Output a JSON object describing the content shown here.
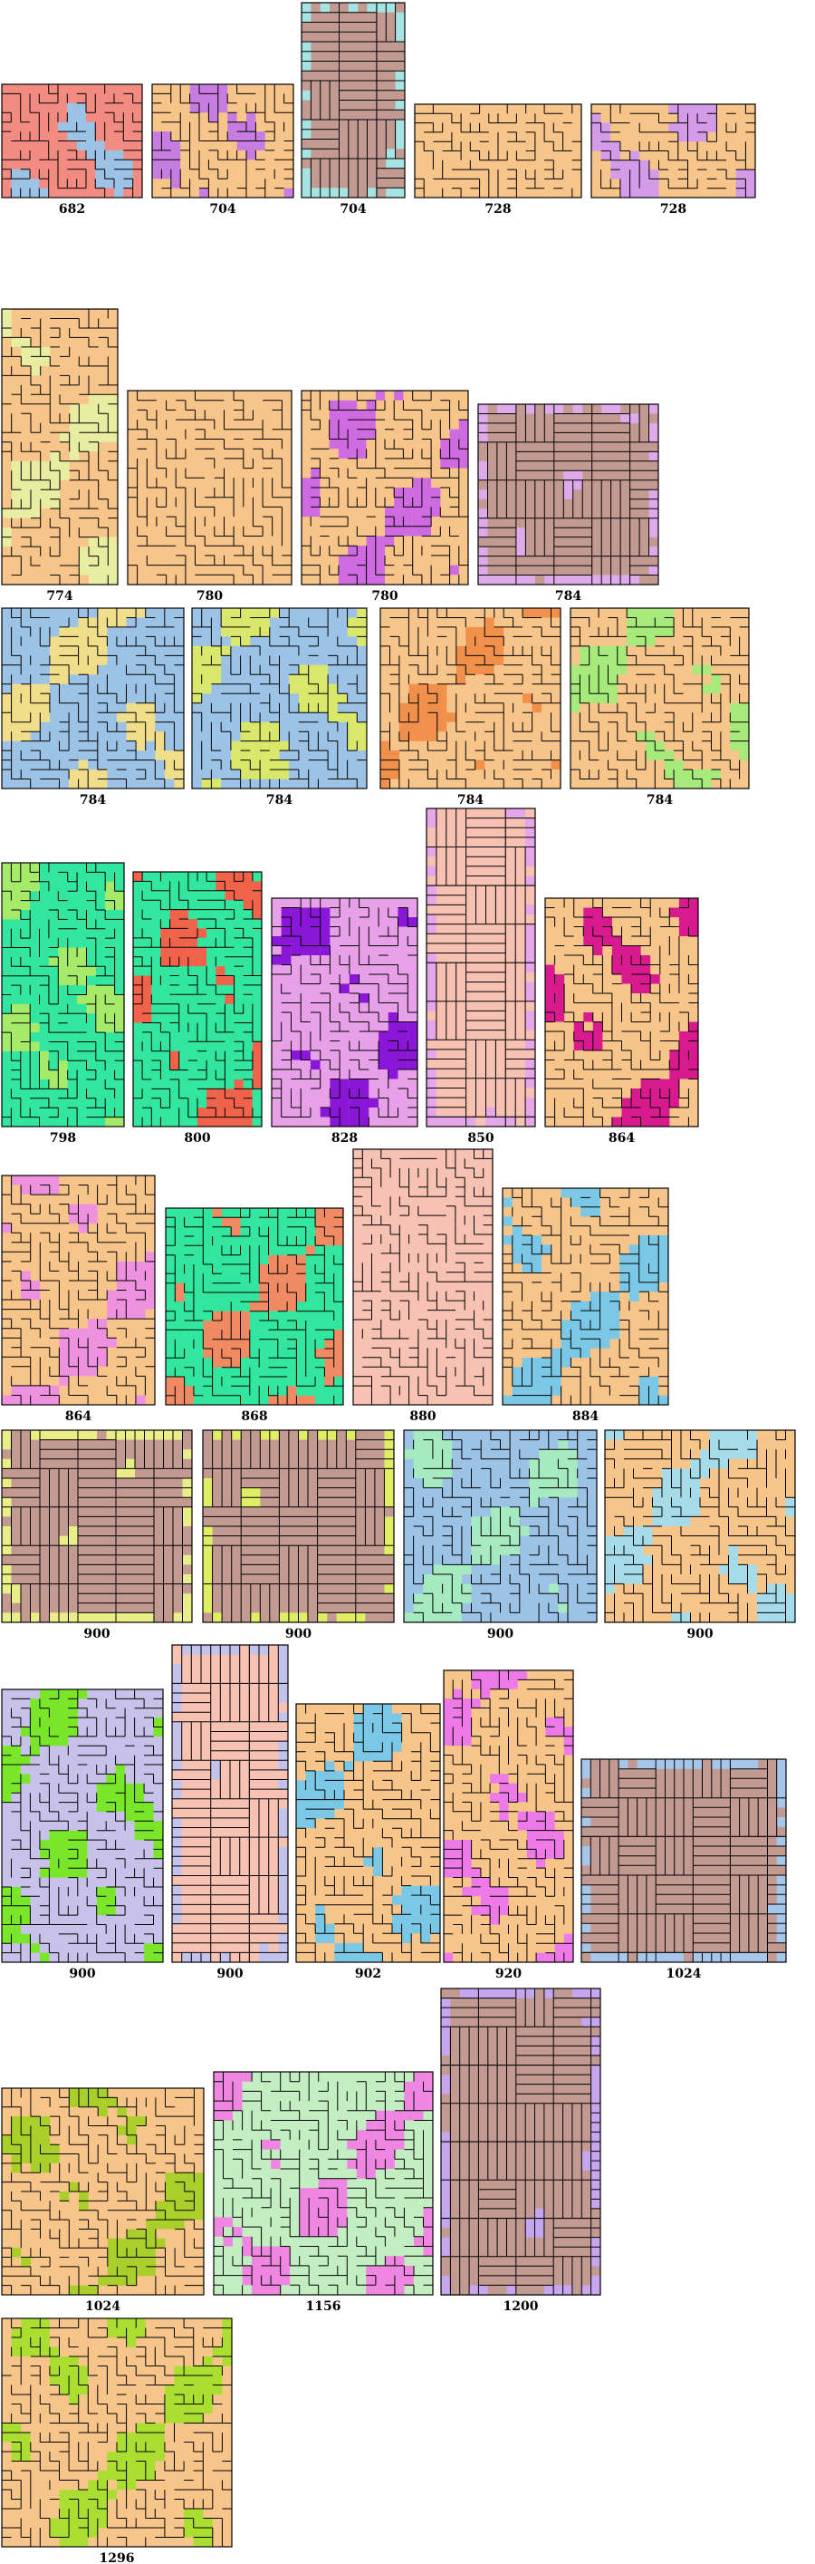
{
  "figure": {
    "panels": [
      {
        "label": "682",
        "colors": [
          "#f28c82",
          "#9cc2e6"
        ],
        "pattern": "zig"
      },
      {
        "label": "704",
        "colors": [
          "#f7c48a",
          "#c77ddf"
        ],
        "pattern": "zig"
      },
      {
        "label": "704",
        "colors": [
          "#c29a92",
          "#a6e3e3"
        ],
        "pattern": "bars"
      },
      {
        "label": "728",
        "colors": [
          "#f7c48a",
          "#f7c48a"
        ],
        "pattern": "zig"
      },
      {
        "label": "728",
        "colors": [
          "#f7c48a",
          "#d49be8"
        ],
        "pattern": "zig"
      },
      {
        "label": "774",
        "colors": [
          "#f7c48a",
          "#e8eda2"
        ],
        "pattern": "zig"
      },
      {
        "label": "780",
        "colors": [
          "#f7c48a",
          "#f7c48a"
        ],
        "pattern": "zig"
      },
      {
        "label": "780",
        "colors": [
          "#f7c48a",
          "#cf6be0"
        ],
        "pattern": "zig"
      },
      {
        "label": "784",
        "colors": [
          "#c29a92",
          "#deaaea"
        ],
        "pattern": "bars"
      },
      {
        "label": "784",
        "colors": [
          "#9cc2e6",
          "#f0de8a"
        ],
        "pattern": "zig"
      },
      {
        "label": "784",
        "colors": [
          "#9cc2e6",
          "#d9e86a"
        ],
        "pattern": "zig"
      },
      {
        "label": "784",
        "colors": [
          "#f7c48a",
          "#f0904a"
        ],
        "pattern": "zig"
      },
      {
        "label": "784",
        "colors": [
          "#f7c48a",
          "#a5ea7a"
        ],
        "pattern": "zig"
      },
      {
        "label": "798",
        "colors": [
          "#32e6a0",
          "#a6ea6a"
        ],
        "pattern": "zig"
      },
      {
        "label": "800",
        "colors": [
          "#32e6a0",
          "#f0624a"
        ],
        "pattern": "zig"
      },
      {
        "label": "828",
        "colors": [
          "#e8a0e8",
          "#8a16d8"
        ],
        "pattern": "zig"
      },
      {
        "label": "850",
        "colors": [
          "#f7c2b2",
          "#e6a6ea"
        ],
        "pattern": "bars"
      },
      {
        "label": "864",
        "colors": [
          "#f7c48a",
          "#d81a8e"
        ],
        "pattern": "zig"
      },
      {
        "label": "864",
        "colors": [
          "#f7c48a",
          "#ee92e0"
        ],
        "pattern": "zig"
      },
      {
        "label": "868",
        "colors": [
          "#32e6a0",
          "#f08a62"
        ],
        "pattern": "zig"
      },
      {
        "label": "880",
        "colors": [
          "#f7c2b2",
          "#f7c2b2"
        ],
        "pattern": "zig"
      },
      {
        "label": "884",
        "colors": [
          "#f7c48a",
          "#7ac8e6"
        ],
        "pattern": "zig"
      },
      {
        "label": "900",
        "colors": [
          "#c29a92",
          "#eaee86"
        ],
        "pattern": "bars"
      },
      {
        "label": "900",
        "colors": [
          "#c29a92",
          "#dfee62"
        ],
        "pattern": "bars"
      },
      {
        "label": "900",
        "colors": [
          "#9cc2e6",
          "#a6eac2"
        ],
        "pattern": "zig"
      },
      {
        "label": "900",
        "colors": [
          "#f7c48a",
          "#a6dcea"
        ],
        "pattern": "zig"
      },
      {
        "label": "900",
        "colors": [
          "#c8c2ea",
          "#7ae62a"
        ],
        "pattern": "zig"
      },
      {
        "label": "900",
        "colors": [
          "#f7c2b2",
          "#c2c2ea"
        ],
        "pattern": "bars"
      },
      {
        "label": "902",
        "colors": [
          "#f7c48a",
          "#7ac8e6"
        ],
        "pattern": "zig"
      },
      {
        "label": "920",
        "colors": [
          "#f7c48a",
          "#ee7ae8"
        ],
        "pattern": "zig"
      },
      {
        "label": "1024",
        "colors": [
          "#c29a92",
          "#a6c6ea"
        ],
        "pattern": "bars"
      },
      {
        "label": "1024",
        "colors": [
          "#f7c48a",
          "#aacf2a"
        ],
        "pattern": "zig"
      },
      {
        "label": "1156",
        "colors": [
          "#c2eec2",
          "#ee86e2"
        ],
        "pattern": "zig"
      },
      {
        "label": "1200",
        "colors": [
          "#c29a92",
          "#c6a6ee"
        ],
        "pattern": "bars"
      },
      {
        "label": "1296",
        "colors": [
          "#f7c48a",
          "#aadf32"
        ],
        "pattern": "zig"
      }
    ]
  }
}
